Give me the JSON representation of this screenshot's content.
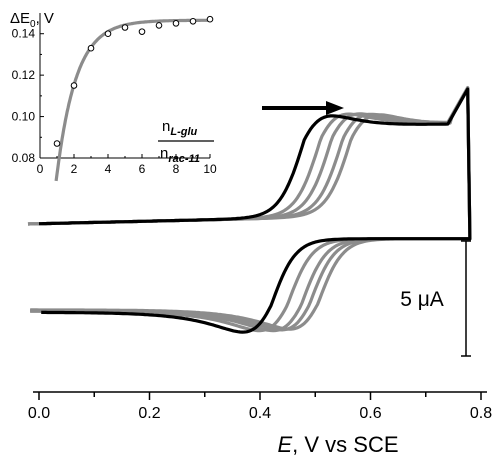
{
  "chart_data": [
    {
      "type": "line",
      "title": "",
      "xlabel": "E, V vs SCE",
      "xlabel_italic": "E",
      "xlabel_rest": ", V vs SCE",
      "ylabel": "",
      "xlim": [
        0.0,
        0.8
      ],
      "xticks": [
        "0.0",
        "0.2",
        "0.4",
        "0.6",
        "0.8"
      ],
      "scale_bar_label": "5 μA",
      "arrow_direction": "right",
      "colors": {
        "black_series": "#000000",
        "gray_series": "#8c8c8c"
      },
      "series": [
        {
          "color": "#000000",
          "anodic_peak": {
            "x": 0.48,
            "y": 14.5
          },
          "cathodic_peak": {
            "x": 0.42,
            "y": -12.5
          }
        },
        {
          "color": "#8c8c8c",
          "anodic_peak": {
            "x": 0.51,
            "y": 14.7
          },
          "cathodic_peak": {
            "x": 0.45,
            "y": -12.3
          }
        },
        {
          "color": "#8c8c8c",
          "anodic_peak": {
            "x": 0.53,
            "y": 14.7
          },
          "cathodic_peak": {
            "x": 0.475,
            "y": -12.3
          }
        },
        {
          "color": "#8c8c8c",
          "anodic_peak": {
            "x": 0.55,
            "y": 14.6
          },
          "cathodic_peak": {
            "x": 0.49,
            "y": -12.2
          }
        },
        {
          "color": "#8c8c8c",
          "anodic_peak": {
            "x": 0.565,
            "y": 14.5
          },
          "cathodic_peak": {
            "x": 0.505,
            "y": -12.1
          }
        }
      ]
    },
    {
      "type": "scatter",
      "title": "ΔE0, V",
      "title_delta": "ΔE",
      "title_sub": "0",
      "title_rest": ", V",
      "ratio_num": "n",
      "ratio_num_sub": "L-glu",
      "ratio_den": "n",
      "ratio_den_sub": "rac-11",
      "xlim": [
        0,
        10
      ],
      "ylim": [
        0.08,
        0.15
      ],
      "xticks": [
        "0",
        "2",
        "4",
        "6",
        "8",
        "10"
      ],
      "yticks": [
        "0.08",
        "0.10",
        "0.12",
        "0.14"
      ],
      "x": [
        1,
        2,
        3,
        4,
        5,
        6,
        7,
        8,
        9,
        10
      ],
      "y": [
        0.087,
        0.115,
        0.133,
        0.14,
        0.143,
        0.141,
        0.144,
        0.145,
        0.146,
        0.147
      ],
      "fit_curve": true
    }
  ]
}
